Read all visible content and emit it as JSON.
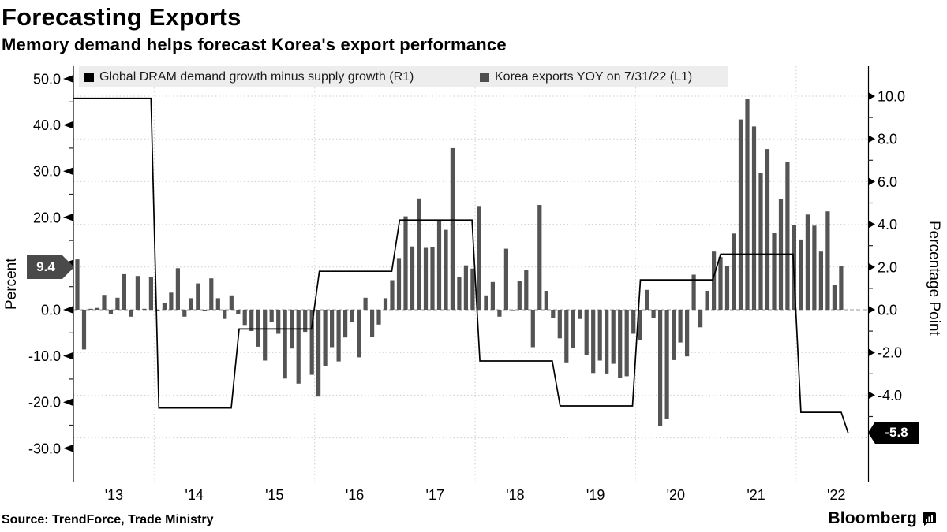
{
  "header": {
    "title": "Forecasting Exports",
    "subtitle": "Memory demand helps forecast Korea's export performance"
  },
  "legend": {
    "items": [
      {
        "label": "Global DRAM demand growth minus supply growth (R1)",
        "color": "#000000"
      },
      {
        "label": "Korea exports YOY on 7/31/22 (L1)",
        "color": "#4f4f4f"
      }
    ],
    "background": "#ededed"
  },
  "chart_data": {
    "type": "combo",
    "title": "Forecasting Exports",
    "x_axis": {
      "year_labels": [
        "'13",
        "'14",
        "'15",
        "'16",
        "'17",
        "'18",
        "'19",
        "'20",
        "'21",
        "'22"
      ],
      "gridline_years": [
        2014,
        2016,
        2018,
        2020,
        2022
      ],
      "range_years": [
        2013.0,
        2022.9
      ]
    },
    "left_axis": {
      "title": "Percent",
      "major_ticks": [
        50,
        40,
        30,
        20,
        10,
        0,
        -10,
        -20,
        -30
      ],
      "minor_ticks": [
        45,
        35,
        25,
        15,
        5,
        -5,
        -15,
        -25
      ],
      "range": [
        -33,
        52
      ],
      "latest_badge": {
        "value": "9.4",
        "numeric": 9.4,
        "color": "#4a4a4a"
      }
    },
    "right_axis": {
      "title": "Percentage Point",
      "major_ticks": [
        10,
        8,
        6,
        4,
        2,
        0,
        -2,
        -4
      ],
      "minor_ticks": [
        9,
        7,
        5,
        3,
        1,
        -1,
        -3,
        -5
      ],
      "gridline_values": [
        10,
        8,
        6,
        4,
        2,
        -2,
        -4,
        -6
      ],
      "range": [
        -6.6,
        10.6
      ],
      "latest_badge": {
        "value": "-5.8",
        "numeric": -5.8,
        "color": "#000000"
      }
    },
    "series": [
      {
        "name": "Global DRAM demand growth minus supply growth (R1)",
        "type": "step_line",
        "axis": "right",
        "color": "#000000",
        "annual": {
          "years": [
            2013,
            2014,
            2015,
            2016,
            2017,
            2018,
            2019,
            2020,
            2021,
            2022
          ],
          "values": [
            9.9,
            -4.6,
            -0.9,
            1.8,
            4.2,
            -2.4,
            -4.5,
            1.4,
            2.6,
            -4.8
          ]
        },
        "final": {
          "date": "2022-07-31",
          "value": -5.8
        }
      },
      {
        "name": "Korea exports YOY on 7/31/22 (L1)",
        "type": "bar",
        "axis": "left",
        "color": "#545454",
        "start": "2013-01",
        "frequency": "monthly",
        "values": [
          10.9,
          -8.6,
          0.2,
          0.4,
          3.2,
          -1.0,
          2.6,
          7.7,
          -1.5,
          7.3,
          0.2,
          7.1,
          -0.2,
          1.4,
          3.7,
          9.0,
          -1.5,
          2.5,
          5.7,
          -0.2,
          6.8,
          2.5,
          -2.0,
          3.1,
          -1.0,
          -3.3,
          -4.6,
          -8.0,
          -11.0,
          -2.6,
          -5.2,
          -14.9,
          -8.4,
          -16.0,
          -4.8,
          -14.1,
          -18.8,
          -12.2,
          -8.1,
          -11.2,
          -6.0,
          -2.7,
          -10.3,
          2.6,
          -5.9,
          -3.2,
          2.5,
          6.4,
          11.2,
          20.2,
          13.7,
          24.1,
          13.4,
          13.6,
          19.5,
          17.3,
          35.0,
          7.1,
          9.6,
          8.9,
          22.3,
          3.1,
          6.0,
          -1.5,
          13.2,
          -0.1,
          6.2,
          8.7,
          -8.1,
          22.7,
          4.1,
          -1.7,
          -6.2,
          -11.4,
          -8.2,
          -2.0,
          -9.8,
          -13.7,
          -11.0,
          -13.8,
          -11.7,
          -14.8,
          -14.4,
          -5.2,
          -6.6,
          4.3,
          -1.7,
          -25.1,
          -23.6,
          -10.9,
          -7.1,
          -10.1,
          7.6,
          -3.8,
          4.1,
          12.6,
          11.4,
          9.5,
          16.5,
          41.2,
          45.6,
          39.7,
          29.6,
          34.8,
          16.7,
          24.0,
          32.0,
          18.3,
          15.2,
          20.6,
          18.2,
          12.6,
          21.3,
          5.4,
          9.4
        ]
      }
    ],
    "grid": {
      "h_color": "#cfcfcf",
      "v_color": "#cfcfcf",
      "zero_color": "#999999"
    }
  },
  "footer": {
    "source": "Source: TrendForce, Trade Ministry",
    "brand": "Bloomberg",
    "brand_icon": "bloomberg-chart-bubble-icon"
  }
}
